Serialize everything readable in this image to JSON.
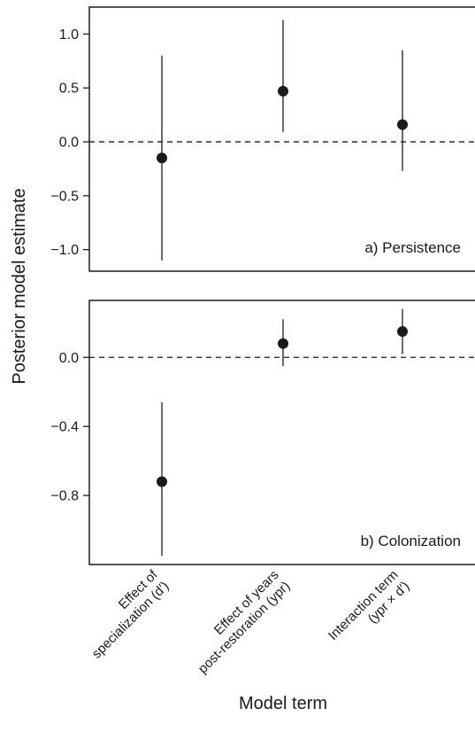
{
  "chart_data": [
    {
      "type": "scatter",
      "panel_label": "a) Persistence",
      "ylabel": "Posterior model estimate",
      "xlabel": "Model term",
      "categories": [
        "Effect of specialization (d′)",
        "Effect of years post-restoration (ypr)",
        "Interaction term (ypr × d′)"
      ],
      "ylim": [
        -1.2,
        1.25
      ],
      "yticks": [
        "1.0",
        "0.5",
        "0.0",
        "−0.5",
        "−1.0"
      ],
      "ytick_values": [
        1.0,
        0.5,
        0.0,
        -0.5,
        -1.0
      ],
      "reference_line": 0,
      "points": [
        {
          "category": "Effect of specialization (d′)",
          "estimate": -0.15,
          "lower": -1.1,
          "upper": 0.8
        },
        {
          "category": "Effect of years post-restoration (ypr)",
          "estimate": 0.47,
          "lower": 0.09,
          "upper": 1.13
        },
        {
          "category": "Interaction term (ypr × d′)",
          "estimate": 0.16,
          "lower": -0.27,
          "upper": 0.85
        }
      ]
    },
    {
      "type": "scatter",
      "panel_label": "b) Colonization",
      "ylabel": "Posterior model estimate",
      "xlabel": "Model term",
      "categories": [
        "Effect of specialization (d′)",
        "Effect of years post-restoration (ypr)",
        "Interaction term (ypr × d′)"
      ],
      "ylim": [
        -1.2,
        0.33
      ],
      "yticks": [
        "0.0",
        "−0.4",
        "−0.8"
      ],
      "ytick_values": [
        0.0,
        -0.4,
        -0.8
      ],
      "reference_line": 0,
      "points": [
        {
          "category": "Effect of specialization (d′)",
          "estimate": -0.72,
          "lower": -1.15,
          "upper": -0.26
        },
        {
          "category": "Effect of years post-restoration (ypr)",
          "estimate": 0.08,
          "lower": -0.05,
          "upper": 0.22
        },
        {
          "category": "Interaction term (ypr × d′)",
          "estimate": 0.15,
          "lower": 0.02,
          "upper": 0.28
        }
      ]
    }
  ],
  "labels": {
    "ylabel": "Posterior model estimate",
    "xlabel": "Model term",
    "cat1_line1": "Effect of",
    "cat1_line2": "specialization (d′)",
    "cat2_line1": "Effect of years",
    "cat2_line2": "post-restoration (ypr)",
    "cat3_line1": "Interaction term",
    "cat3_line2": "(ypr × d′)"
  }
}
